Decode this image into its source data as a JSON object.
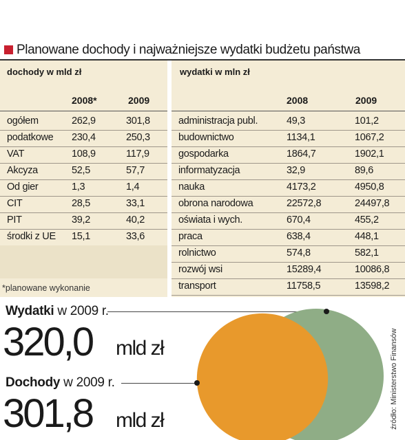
{
  "title": "Planowane dochody i najważniejsze wydatki budżetu państwa",
  "source": "źródło: Ministerstwo Finansów",
  "footnote": "*planowane wykonanie",
  "colors": {
    "accent": "#c8202f",
    "panel": "#f4ecd6",
    "expenses_circle": "#8fad86",
    "revenue_circle": "#e8992c"
  },
  "chart_data": [
    {
      "type": "table",
      "title": "dochody w mld zł",
      "columns": [
        "",
        "2008*",
        "2009"
      ],
      "rows": [
        [
          "ogółem",
          "262,9",
          "301,8"
        ],
        [
          "podatkowe",
          "230,4",
          "250,3"
        ],
        [
          "VAT",
          "108,9",
          "117,9"
        ],
        [
          "Akcyza",
          "52,5",
          "57,7"
        ],
        [
          "Od gier",
          "1,3",
          "1,4"
        ],
        [
          "CIT",
          "28,5",
          "33,1"
        ],
        [
          "PIT",
          "39,2",
          "40,2"
        ],
        [
          "środki z UE",
          "15,1",
          "33,6"
        ]
      ]
    },
    {
      "type": "table",
      "title": "wydatki w mln zł",
      "columns": [
        "",
        "2008",
        "2009"
      ],
      "rows": [
        [
          "administracja publ.",
          "49,3",
          "101,2"
        ],
        [
          "budownictwo",
          "1134,1",
          "1067,2"
        ],
        [
          "gospodarka",
          "1864,7",
          "1902,1"
        ],
        [
          "informatyzacja",
          "32,9",
          "89,6"
        ],
        [
          "nauka",
          "4173,2",
          "4950,8"
        ],
        [
          "obrona narodowa",
          "22572,8",
          "24497,8"
        ],
        [
          "oświata i wych.",
          "670,4",
          "455,2"
        ],
        [
          "praca",
          "638,4",
          "448,1"
        ],
        [
          "rolnictwo",
          "574,8",
          "582,1"
        ],
        [
          "rozwój wsi",
          "15289,4",
          "10086,8"
        ],
        [
          "transport",
          "11758,5",
          "13598,2"
        ]
      ]
    },
    {
      "type": "area",
      "series": [
        {
          "name": "Wydatki",
          "label_suffix": " w 2009 r.",
          "value": 320.0,
          "display": "320,0",
          "unit": "mld zł"
        },
        {
          "name": "Dochody",
          "label_suffix": " w 2009 r.",
          "value": 301.8,
          "display": "301,8",
          "unit": "mld zł"
        }
      ]
    }
  ]
}
